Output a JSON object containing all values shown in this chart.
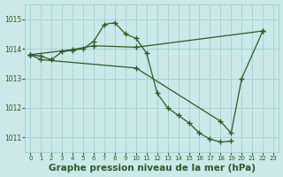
{
  "background_color": "#cce8e8",
  "grid_color": "#99cccc",
  "line_color": "#2d5a27",
  "xlabel": "Graphe pression niveau de la mer (hPa)",
  "xlabel_fontsize": 7.5,
  "ylim": [
    1010.5,
    1015.5
  ],
  "xlim": [
    -0.5,
    23.5
  ],
  "yticks": [
    1011,
    1012,
    1013,
    1014,
    1015
  ],
  "xticks": [
    0,
    1,
    2,
    3,
    4,
    5,
    6,
    7,
    8,
    9,
    10,
    11,
    12,
    13,
    14,
    15,
    16,
    17,
    18,
    19,
    20,
    21,
    22,
    23
  ],
  "curve1_x": [
    0,
    1,
    2,
    3,
    4,
    5,
    6,
    7,
    8,
    9,
    10,
    11,
    12,
    13,
    14,
    15,
    16,
    17,
    18,
    19
  ],
  "curve1_y": [
    1013.8,
    1013.75,
    1013.63,
    1013.9,
    1013.95,
    1014.0,
    1014.25,
    1014.82,
    1014.88,
    1014.5,
    1014.35,
    1013.85,
    1012.5,
    1012.0,
    1011.75,
    1011.5,
    1011.15,
    1010.95,
    1010.85,
    1010.88
  ],
  "curve2_x": [
    0,
    4,
    6,
    10,
    22
  ],
  "curve2_y": [
    1013.8,
    1013.97,
    1014.1,
    1014.05,
    1014.6
  ],
  "curve3_x": [
    0,
    1,
    10,
    18,
    19,
    20,
    22
  ],
  "curve3_y": [
    1013.8,
    1013.63,
    1013.35,
    1011.55,
    1011.15,
    1013.0,
    1014.6
  ]
}
